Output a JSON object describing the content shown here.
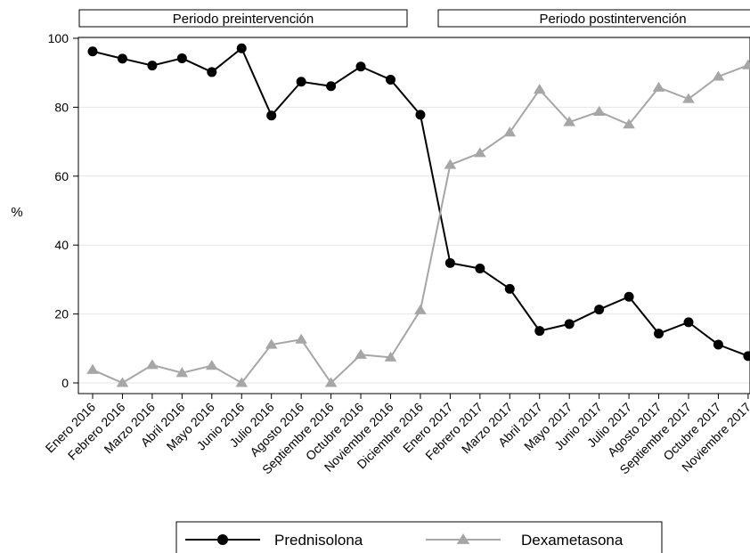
{
  "chart_data": {
    "type": "line",
    "ylabel": "%",
    "ylim": [
      0,
      100
    ],
    "yticks": [
      0,
      20,
      40,
      60,
      80,
      100
    ],
    "grid": "horizontal",
    "legend_position": "bottom",
    "periods": [
      {
        "label": "Periodo preintervención"
      },
      {
        "label": "Periodo postintervención"
      }
    ],
    "categories": [
      "Enero 2016",
      "Febrero 2016",
      "Marzo 2016",
      "Abril 2016",
      "Mayo 2016",
      "Junio 2016",
      "Julio 2016",
      "Agosto 2016",
      "Septiembre 2016",
      "Octubre 2016",
      "Noviembre 2016",
      "Diciembre 2016",
      "Enero 2017",
      "Febrero 2017",
      "Marzo 2017",
      "Abril 2017",
      "Mayo 2017",
      "Junio 2017",
      "Julio 2017",
      "Agosto 2017",
      "Septiembre 2017",
      "Octubre 2017",
      "Noviembre 2017"
    ],
    "series": [
      {
        "name": "Prednisolona",
        "color": "#000000",
        "marker": "circle",
        "values": [
          96.2,
          94.1,
          92.1,
          94.2,
          90.2,
          97.1,
          77.6,
          87.4,
          86.1,
          91.8,
          88.0,
          77.8,
          34.8,
          33.2,
          27.3,
          15.1,
          17.1,
          21.3,
          25.0,
          14.3,
          17.6,
          11.1,
          7.8
        ]
      },
      {
        "name": "Dexametasona",
        "color": "#a6a6a6",
        "marker": "triangle",
        "values": [
          3.8,
          0.0,
          5.2,
          2.9,
          5.0,
          0.0,
          11.1,
          12.6,
          0.0,
          8.2,
          7.4,
          21.1,
          63.3,
          66.7,
          72.7,
          85.1,
          75.7,
          78.7,
          75.0,
          85.7,
          82.4,
          88.9,
          92.2
        ]
      }
    ]
  }
}
